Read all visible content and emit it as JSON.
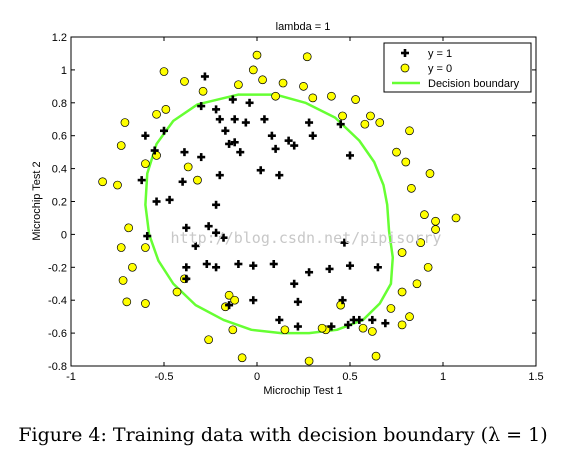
{
  "chart_data": {
    "type": "scatter",
    "title": "lambda = 1",
    "xlabel": "Microchip Test 1",
    "ylabel": "Microchip Test 2",
    "xlim": [
      -1,
      1.5
    ],
    "ylim": [
      -0.8,
      1.2
    ],
    "xticks": [
      "-1",
      "-0.5",
      "0",
      "0.5",
      "1",
      "1.5"
    ],
    "yticks": [
      "-0.8",
      "-0.6",
      "-0.4",
      "-0.2",
      "0",
      "0.2",
      "0.4",
      "0.6",
      "0.8",
      "1",
      "1.2"
    ],
    "legend_position": "top-right",
    "grid": false,
    "series": [
      {
        "name": "y = 1",
        "marker": "plus",
        "color": "#000000",
        "points": [
          [
            -0.28,
            0.96
          ],
          [
            -0.3,
            0.78
          ],
          [
            -0.22,
            0.76
          ],
          [
            -0.13,
            0.82
          ],
          [
            -0.04,
            0.8
          ],
          [
            -0.2,
            0.7
          ],
          [
            -0.12,
            0.7
          ],
          [
            -0.06,
            0.68
          ],
          [
            -0.17,
            0.63
          ],
          [
            0.04,
            0.7
          ],
          [
            0.17,
            0.57
          ],
          [
            0.2,
            0.54
          ],
          [
            0.3,
            0.6
          ],
          [
            0.28,
            0.68
          ],
          [
            0.45,
            0.67
          ],
          [
            0.5,
            0.48
          ],
          [
            -0.5,
            0.63
          ],
          [
            -0.6,
            0.6
          ],
          [
            -0.39,
            0.5
          ],
          [
            -0.3,
            0.47
          ],
          [
            -0.15,
            0.55
          ],
          [
            -0.12,
            0.56
          ],
          [
            -0.09,
            0.5
          ],
          [
            0.08,
            0.6
          ],
          [
            0.1,
            0.52
          ],
          [
            -0.55,
            0.51
          ],
          [
            -0.2,
            0.36
          ],
          [
            -0.4,
            0.32
          ],
          [
            -0.62,
            0.33
          ],
          [
            0.12,
            0.36
          ],
          [
            0.02,
            0.39
          ],
          [
            -0.22,
            0.18
          ],
          [
            -0.47,
            0.21
          ],
          [
            -0.54,
            0.2
          ],
          [
            -0.22,
            0.01
          ],
          [
            -0.26,
            0.05
          ],
          [
            -0.38,
            0.04
          ],
          [
            -0.18,
            -0.02
          ],
          [
            -0.33,
            -0.07
          ],
          [
            -0.38,
            -0.2
          ],
          [
            -0.22,
            -0.2
          ],
          [
            -0.27,
            -0.18
          ],
          [
            -0.59,
            -0.01
          ],
          [
            -0.1,
            -0.18
          ],
          [
            -0.02,
            -0.19
          ],
          [
            0.09,
            -0.18
          ],
          [
            0.28,
            -0.23
          ],
          [
            0.39,
            -0.21
          ],
          [
            0.5,
            -0.19
          ],
          [
            0.47,
            -0.05
          ],
          [
            0.2,
            -0.3
          ],
          [
            0.46,
            -0.4
          ],
          [
            0.22,
            -0.41
          ],
          [
            -0.02,
            -0.4
          ],
          [
            -0.15,
            -0.43
          ],
          [
            -0.38,
            -0.27
          ],
          [
            0.52,
            -0.52
          ],
          [
            0.49,
            -0.55
          ],
          [
            0.4,
            -0.56
          ],
          [
            0.55,
            -0.52
          ],
          [
            0.62,
            -0.52
          ],
          [
            0.12,
            -0.52
          ],
          [
            0.22,
            -0.56
          ],
          [
            0.69,
            -0.54
          ],
          [
            0.65,
            -0.2
          ]
        ]
      },
      {
        "name": "y = 0",
        "marker": "circle",
        "color": "#ffff00",
        "points": [
          [
            -0.83,
            0.32
          ],
          [
            -0.75,
            0.3
          ],
          [
            -0.73,
            0.54
          ],
          [
            -0.71,
            0.68
          ],
          [
            -0.54,
            0.73
          ],
          [
            -0.49,
            0.76
          ],
          [
            -0.5,
            0.99
          ],
          [
            -0.39,
            0.93
          ],
          [
            -0.29,
            0.87
          ],
          [
            -0.1,
            0.91
          ],
          [
            0.0,
            1.09
          ],
          [
            -0.02,
            1.0
          ],
          [
            0.03,
            0.94
          ],
          [
            0.1,
            0.84
          ],
          [
            0.14,
            0.92
          ],
          [
            0.27,
            1.08
          ],
          [
            0.25,
            0.9
          ],
          [
            0.3,
            0.83
          ],
          [
            0.4,
            0.84
          ],
          [
            0.46,
            0.72
          ],
          [
            0.53,
            0.82
          ],
          [
            0.58,
            0.67
          ],
          [
            0.61,
            0.72
          ],
          [
            0.66,
            0.68
          ],
          [
            0.75,
            0.5
          ],
          [
            0.82,
            0.63
          ],
          [
            0.8,
            0.44
          ],
          [
            0.93,
            0.37
          ],
          [
            0.83,
            0.28
          ],
          [
            0.9,
            0.12
          ],
          [
            1.07,
            0.1
          ],
          [
            0.96,
            0.08
          ],
          [
            0.96,
            0.03
          ],
          [
            0.88,
            -0.05
          ],
          [
            0.78,
            -0.11
          ],
          [
            0.92,
            -0.2
          ],
          [
            0.86,
            -0.3
          ],
          [
            0.78,
            -0.35
          ],
          [
            0.72,
            -0.45
          ],
          [
            0.82,
            -0.5
          ],
          [
            0.78,
            -0.55
          ],
          [
            0.62,
            -0.59
          ],
          [
            0.64,
            -0.74
          ],
          [
            0.57,
            -0.57
          ],
          [
            0.37,
            -0.58
          ],
          [
            0.28,
            -0.77
          ],
          [
            -0.08,
            -0.75
          ],
          [
            -0.13,
            -0.58
          ],
          [
            -0.26,
            -0.64
          ],
          [
            -0.15,
            -0.37
          ],
          [
            -0.17,
            -0.44
          ],
          [
            -0.43,
            -0.35
          ],
          [
            -0.6,
            -0.42
          ],
          [
            -0.7,
            -0.41
          ],
          [
            -0.72,
            -0.28
          ],
          [
            -0.67,
            -0.2
          ],
          [
            -0.73,
            -0.08
          ],
          [
            -0.6,
            -0.08
          ],
          [
            -0.69,
            0.04
          ],
          [
            -0.6,
            0.43
          ],
          [
            -0.54,
            0.48
          ],
          [
            -0.37,
            0.41
          ],
          [
            -0.32,
            0.33
          ],
          [
            -0.39,
            -0.27
          ],
          [
            -0.12,
            -0.4
          ],
          [
            0.15,
            -0.58
          ],
          [
            0.45,
            -0.43
          ],
          [
            0.35,
            -0.57
          ]
        ]
      }
    ],
    "decision_boundary": {
      "name": "Decision boundary",
      "color": "#66ff33",
      "points": [
        [
          -0.1,
          0.85
        ],
        [
          0.1,
          0.85
        ],
        [
          0.26,
          0.8
        ],
        [
          0.42,
          0.71
        ],
        [
          0.55,
          0.57
        ],
        [
          0.63,
          0.44
        ],
        [
          0.68,
          0.3
        ],
        [
          0.7,
          0.18
        ],
        [
          0.71,
          0.02
        ],
        [
          0.73,
          -0.14
        ],
        [
          0.72,
          -0.3
        ],
        [
          0.66,
          -0.42
        ],
        [
          0.57,
          -0.52
        ],
        [
          0.43,
          -0.58
        ],
        [
          0.28,
          -0.6
        ],
        [
          0.13,
          -0.6
        ],
        [
          -0.03,
          -0.58
        ],
        [
          -0.18,
          -0.52
        ],
        [
          -0.33,
          -0.43
        ],
        [
          -0.45,
          -0.3
        ],
        [
          -0.53,
          -0.16
        ],
        [
          -0.58,
          0.0
        ],
        [
          -0.6,
          0.18
        ],
        [
          -0.59,
          0.37
        ],
        [
          -0.54,
          0.55
        ],
        [
          -0.45,
          0.69
        ],
        [
          -0.32,
          0.79
        ],
        [
          -0.1,
          0.85
        ]
      ]
    }
  },
  "watermark_text": "http://blog.csdn.net/pipisorry",
  "caption": "Figure 4: Training data with decision boundary (λ = 1)"
}
